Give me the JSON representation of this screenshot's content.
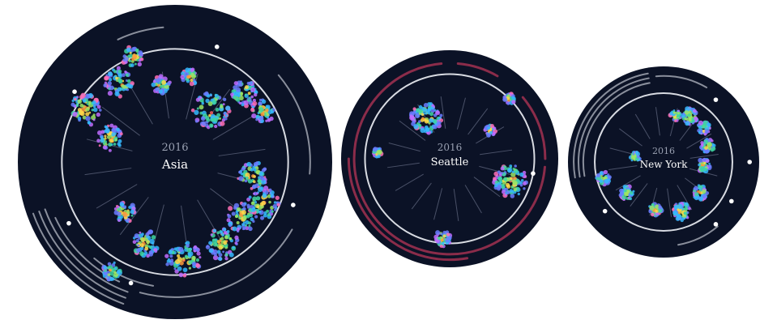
{
  "panels": [
    {
      "id": "asia",
      "year": "2016",
      "name": "Asia",
      "colors": {
        "background": "#0b1226",
        "ring": "#d8dbe2",
        "arcs": "#8a8f9c"
      },
      "clusters": [
        {
          "angle": 150,
          "r": 0.66,
          "size": 1.0
        },
        {
          "angle": 160,
          "r": 0.44,
          "size": 0.8
        },
        {
          "angle": 125,
          "r": 0.62,
          "size": 0.9
        },
        {
          "angle": 112,
          "r": 0.72,
          "size": 0.6
        },
        {
          "angle": 100,
          "r": 0.5,
          "size": 0.5
        },
        {
          "angle": 80,
          "r": 0.55,
          "size": 0.4
        },
        {
          "angle": 55,
          "r": 0.4,
          "size": 1.2
        },
        {
          "angle": 45,
          "r": 0.62,
          "size": 0.8
        },
        {
          "angle": 30,
          "r": 0.65,
          "size": 0.7
        },
        {
          "angle": -10,
          "r": 0.5,
          "size": 0.9
        },
        {
          "angle": -25,
          "r": 0.62,
          "size": 1.0
        },
        {
          "angle": -40,
          "r": 0.55,
          "size": 0.9
        },
        {
          "angle": -60,
          "r": 0.6,
          "size": 1.0
        },
        {
          "angle": -85,
          "r": 0.62,
          "size": 1.1
        },
        {
          "angle": -110,
          "r": 0.55,
          "size": 0.8
        },
        {
          "angle": -135,
          "r": 0.45,
          "size": 0.6
        },
        {
          "angle": -120,
          "r": 0.8,
          "size": 0.5
        }
      ]
    },
    {
      "id": "seattle",
      "year": "2016",
      "name": "Seattle",
      "colors": {
        "background": "#0b1226",
        "ring": "#d8dbe2",
        "arcs": "#8b2c4a"
      },
      "clusters": [
        {
          "angle": 120,
          "r": 0.4,
          "size": 1.4
        },
        {
          "angle": -20,
          "r": 0.55,
          "size": 1.5
        },
        {
          "angle": -95,
          "r": 0.68,
          "size": 0.6
        },
        {
          "angle": 35,
          "r": 0.42,
          "size": 0.3
        },
        {
          "angle": 45,
          "r": 0.72,
          "size": 0.3
        },
        {
          "angle": 175,
          "r": 0.62,
          "size": 0.2
        }
      ]
    },
    {
      "id": "new-york",
      "year": "2016",
      "name": "New York",
      "colors": {
        "background": "#0b1226",
        "ring": "#d8dbe2",
        "arcs": "#8a8f9c"
      },
      "clusters": [
        {
          "angle": 75,
          "r": 0.5,
          "size": 0.4
        },
        {
          "angle": 60,
          "r": 0.55,
          "size": 0.7
        },
        {
          "angle": 40,
          "r": 0.55,
          "size": 0.5
        },
        {
          "angle": 20,
          "r": 0.5,
          "size": 0.6
        },
        {
          "angle": -5,
          "r": 0.42,
          "size": 0.5
        },
        {
          "angle": -40,
          "r": 0.5,
          "size": 0.6
        },
        {
          "angle": -70,
          "r": 0.55,
          "size": 0.8
        },
        {
          "angle": -100,
          "r": 0.5,
          "size": 0.5
        },
        {
          "angle": -140,
          "r": 0.5,
          "size": 0.6
        },
        {
          "angle": -165,
          "r": 0.65,
          "size": 0.5
        },
        {
          "angle": 170,
          "r": 0.3,
          "size": 0.3
        }
      ]
    }
  ]
}
